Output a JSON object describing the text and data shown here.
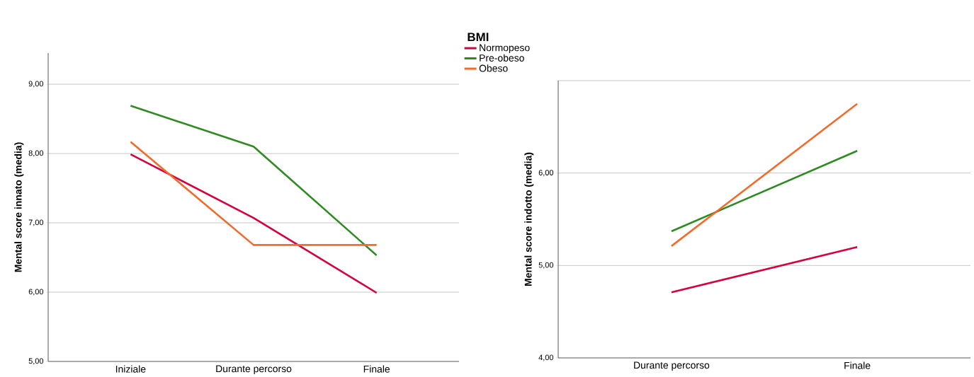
{
  "chart_data": [
    {
      "type": "line",
      "ylabel": "Mental score innato (media)",
      "legend_title": "BMI",
      "legend": "top right",
      "grid": "y",
      "categories": [
        "Iniziale",
        "Durante percorso",
        "Finale"
      ],
      "ylim": [
        5,
        9.45
      ],
      "yticks": [
        {
          "value": 5,
          "label": "5,00"
        },
        {
          "value": 6,
          "label": "6,00"
        },
        {
          "value": 7,
          "label": "7,00"
        },
        {
          "value": 8,
          "label": "8,00"
        },
        {
          "value": 9,
          "label": "9,00"
        }
      ],
      "series": [
        {
          "name": "Normopeso",
          "color": "#d6003e",
          "values": [
            7.99,
            7.07,
            5.99
          ]
        },
        {
          "name": "Pre-obeso",
          "color": "#2e8b22",
          "values": [
            8.69,
            8.1,
            6.53
          ]
        },
        {
          "name": "Obeso",
          "color": "#f26b2b",
          "values": [
            8.17,
            6.68,
            6.68
          ]
        }
      ]
    },
    {
      "type": "line",
      "ylabel": "Mental score indotto (media)",
      "grid": "y",
      "categories": [
        "Durante percorso",
        "Finale"
      ],
      "ylim": [
        4,
        7
      ],
      "yticks": [
        {
          "value": 4,
          "label": "4,00"
        },
        {
          "value": 5,
          "label": "5,00"
        },
        {
          "value": 6,
          "label": "6,00"
        },
        {
          "value": 7,
          "label": null
        }
      ],
      "series": [
        {
          "color": "#d6003e",
          "values": [
            4.71,
            5.2
          ]
        },
        {
          "color": "#2e8b22",
          "values": [
            5.37,
            6.24
          ]
        },
        {
          "color": "#f26b2b",
          "values": [
            5.21,
            6.75
          ]
        }
      ]
    }
  ]
}
